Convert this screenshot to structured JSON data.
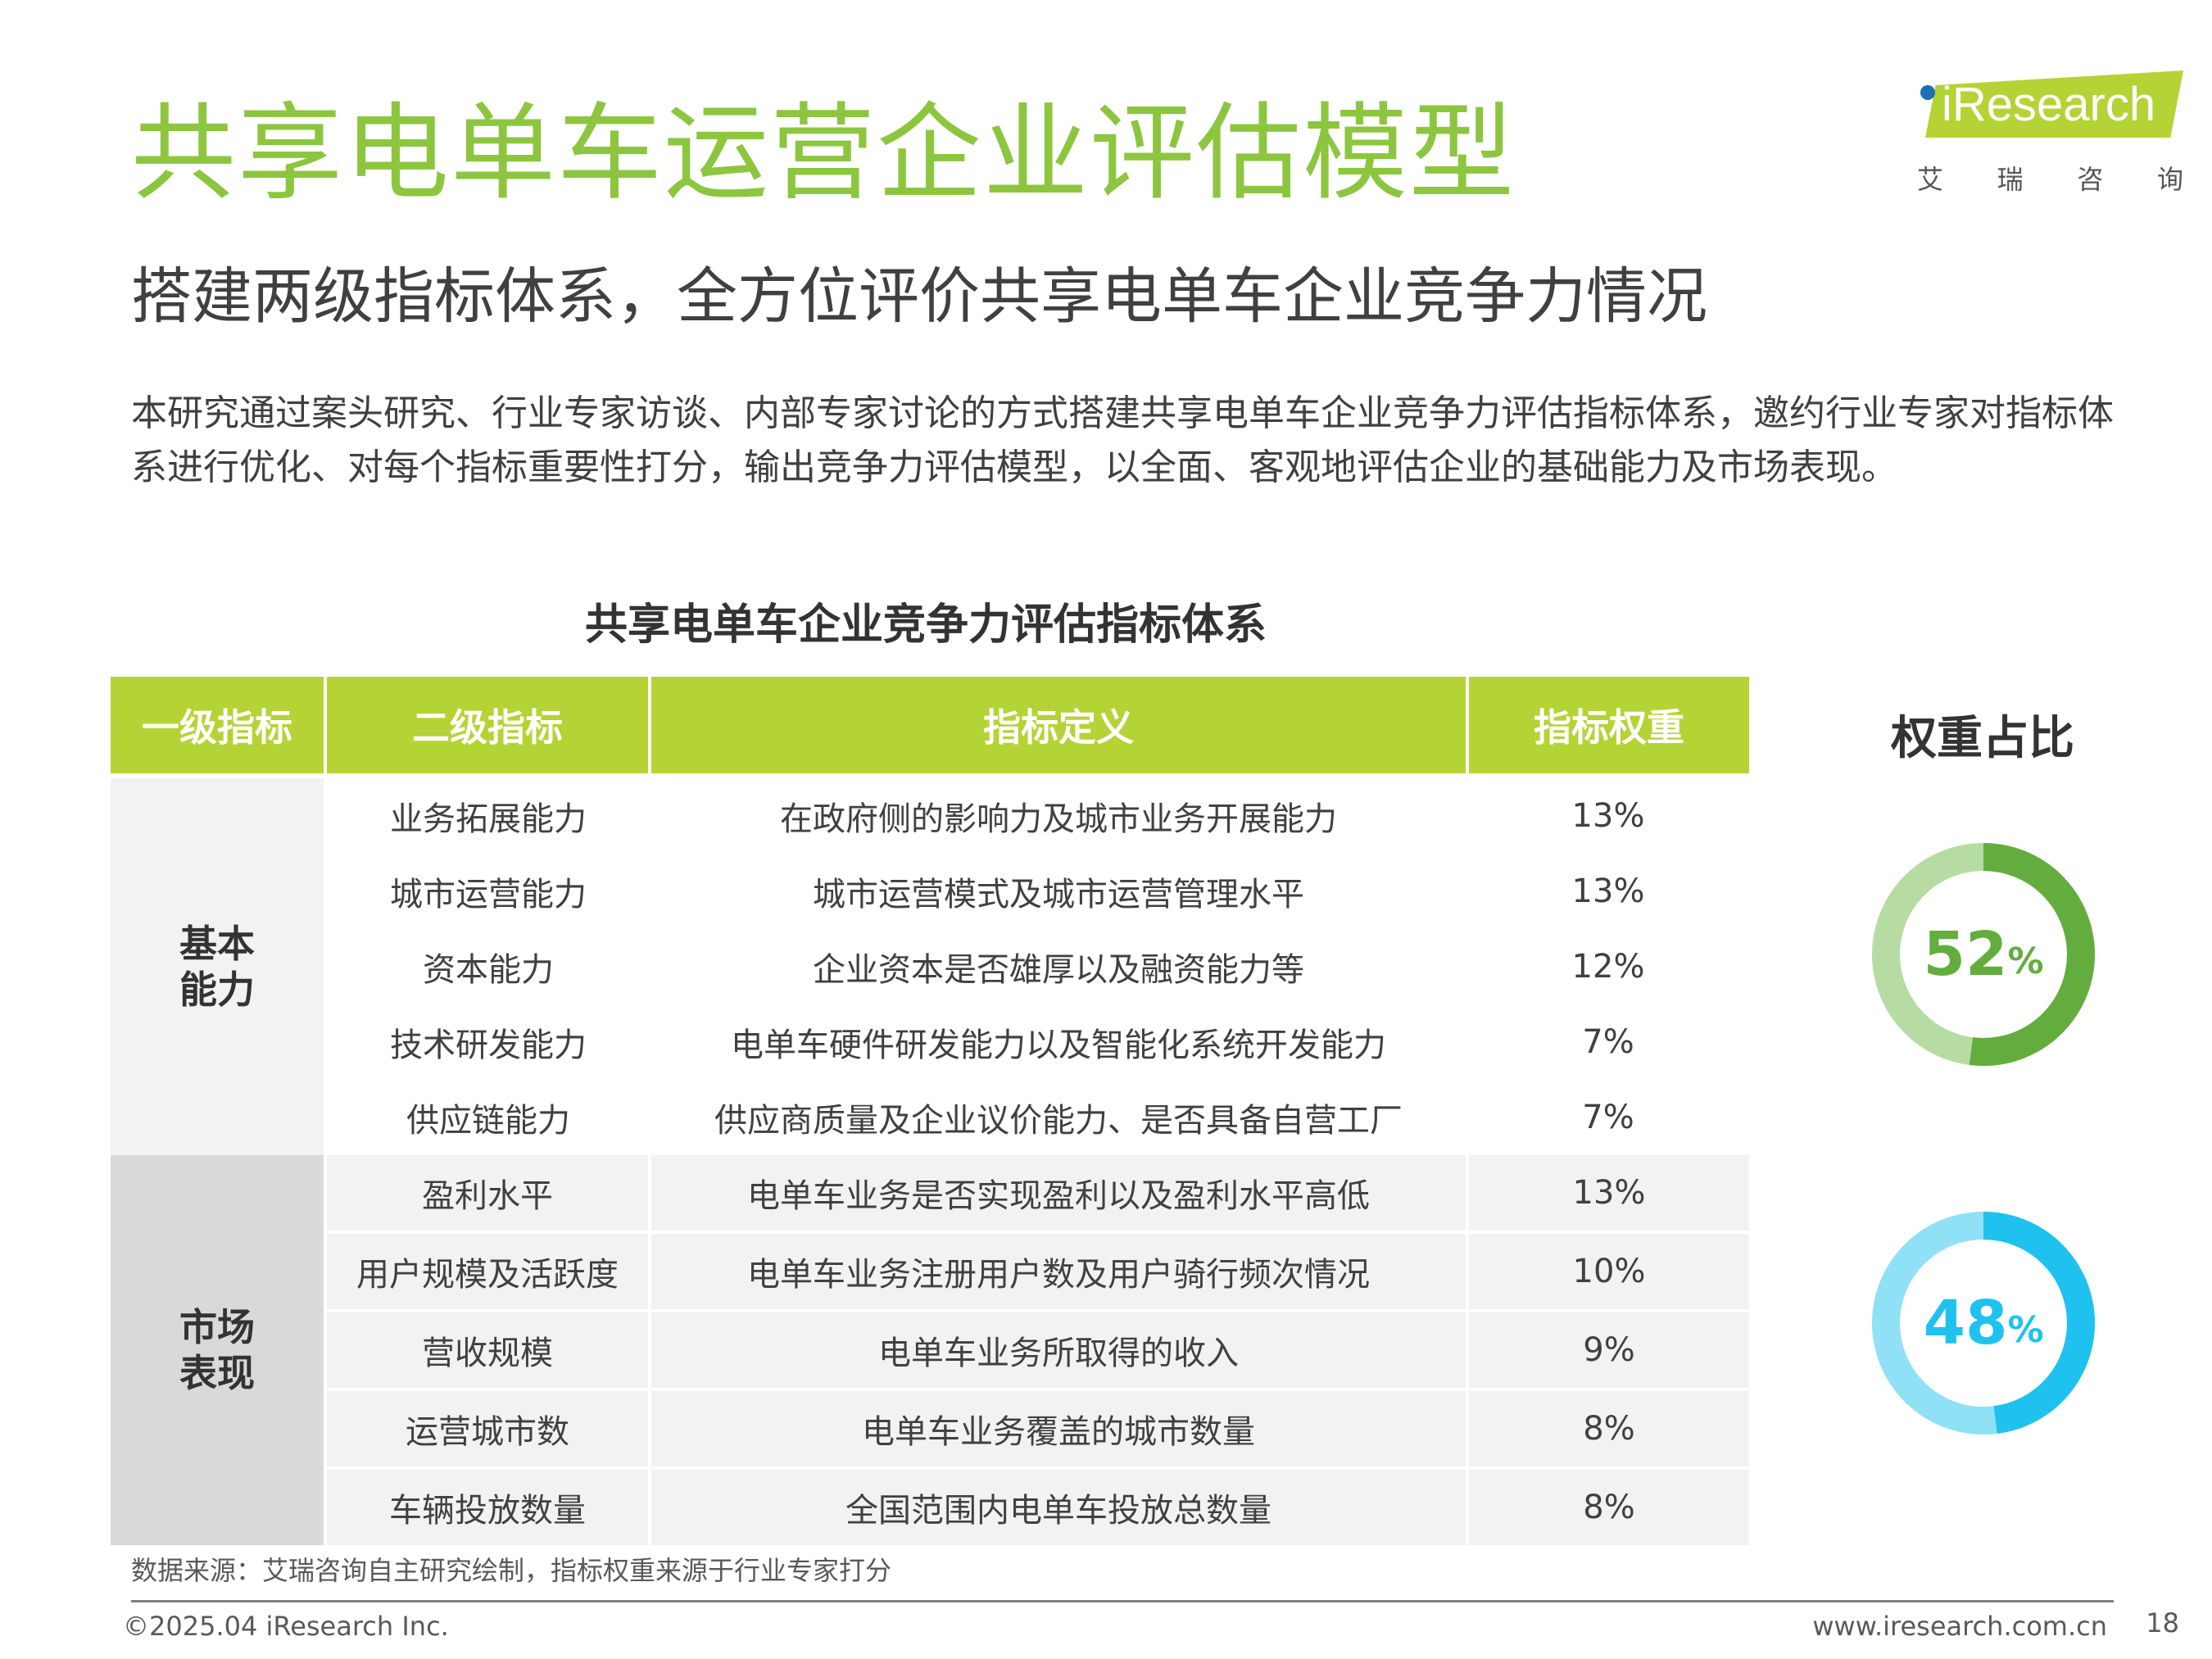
{
  "title": "共享电单车运营企业评估模型",
  "subtitle": "搭建两级指标体系，全方位评价共享电单车企业竞争力情况",
  "intro": "本研究通过案头研究、行业专家访谈、内部专家讨论的方式搭建共享电单车企业竞争力评估指标体系，邀约行业专家对指标体系进行优化、对每个指标重要性打分，输出竞争力评估模型，以全面、客观地评估企业的基础能力及市场表现。",
  "logo": {
    "text": "iResearch",
    "cn": [
      "艾",
      "瑞",
      "咨",
      "询"
    ]
  },
  "table": {
    "title": "共享电单车企业竞争力评估指标体系",
    "headers": [
      "一级指标",
      "二级指标",
      "指标定义",
      "指标权重"
    ],
    "groups": [
      {
        "name_lines": [
          "基本",
          "能力"
        ],
        "rows": [
          {
            "name": "业务拓展能力",
            "def": "在政府侧的影响力及城市业务开展能力",
            "weight": "13%"
          },
          {
            "name": "城市运营能力",
            "def": "城市运营模式及城市运营管理水平",
            "weight": "13%"
          },
          {
            "name": "资本能力",
            "def": "企业资本是否雄厚以及融资能力等",
            "weight": "12%"
          },
          {
            "name": "技术研发能力",
            "def": "电单车硬件研发能力以及智能化系统开发能力",
            "weight": "7%"
          },
          {
            "name": "供应链能力",
            "def": "供应商质量及企业议价能力、是否具备自营工厂",
            "weight": "7%"
          }
        ]
      },
      {
        "name_lines": [
          "市场",
          "表现"
        ],
        "rows": [
          {
            "name": "盈利水平",
            "def": "电单车业务是否实现盈利以及盈利水平高低",
            "weight": "13%"
          },
          {
            "name": "用户规模及活跃度",
            "def": "电单车业务注册用户数及用户骑行频次情况",
            "weight": "10%"
          },
          {
            "name": "营收规模",
            "def": "电单车业务所取得的收入",
            "weight": "9%"
          },
          {
            "name": "运营城市数",
            "def": "电单车业务覆盖的城市数量",
            "weight": "8%"
          },
          {
            "name": "车辆投放数量",
            "def": "全国范围内电单车投放总数量",
            "weight": "8%"
          }
        ]
      }
    ]
  },
  "weights": {
    "title": "权重占比",
    "donuts": [
      {
        "value": 52,
        "num": "52",
        "pct": "%",
        "color": "#62ad3e",
        "track": "#b7dca3"
      },
      {
        "value": 48,
        "num": "48",
        "pct": "%",
        "color": "#1fc2ee",
        "track": "#90e1f6"
      }
    ]
  },
  "source": "数据来源：艾瑞咨询自主研究绘制，指标权重来源于行业专家打分",
  "footer": {
    "copyright": "©2025.04 iResearch Inc.",
    "website": "www.iresearch.com.cn",
    "page": "18"
  }
}
